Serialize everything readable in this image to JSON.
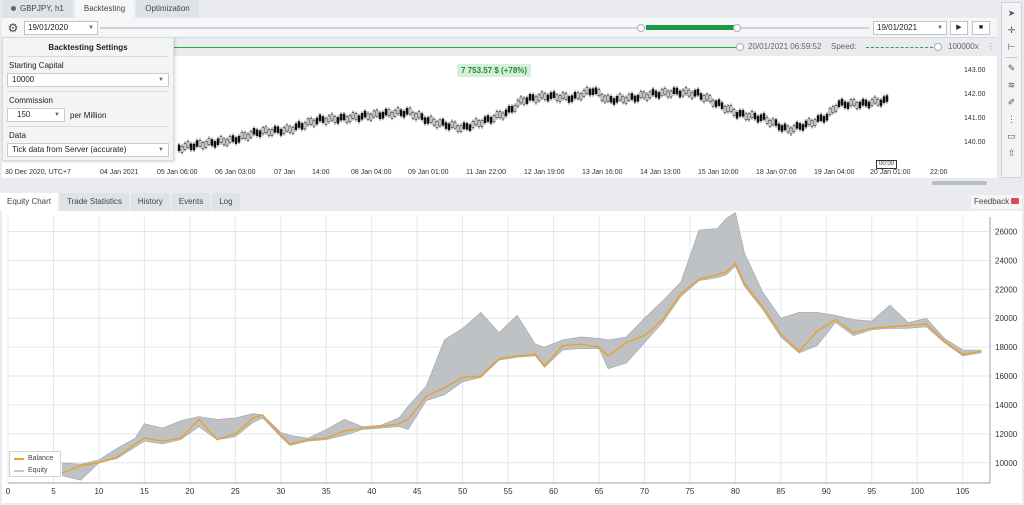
{
  "top_tabs": [
    {
      "label": "GBPJPY, h1"
    },
    {
      "label": "Backtesting"
    },
    {
      "label": "Optimization"
    }
  ],
  "control_bar": {
    "start_date": "19/01/2020",
    "end_date": "19/01/2021",
    "play_symbol": "▶",
    "stop_symbol": "■"
  },
  "speed_bar": {
    "timestamp": "20/01/2021 06:59:52",
    "speed_label": "Speed:",
    "speed_value": "100000x"
  },
  "candle_chart": {
    "profit_badge": "7 753.57 $ (+78%)",
    "price_labels": [
      "143.00",
      "142.00",
      "141.00",
      "140.00"
    ],
    "time_labels": [
      "30 Dec 2020, UTC+7",
      "04 Jan 2021",
      "05 Jan 06:00",
      "06 Jan 03:00",
      "07 Jan",
      "14:00",
      "08 Jan 04:00",
      "09 Jan 01:00",
      "11 Jan 22:00",
      "12 Jan 19:00",
      "13 Jan 16:00",
      "14 Jan 13:00",
      "15 Jan 10:00",
      "18 Jan 07:00",
      "19 Jan 04:00",
      "20 Jan 01:00",
      "22:00"
    ],
    "cursor_label": "00:00"
  },
  "settings": {
    "title": "Backtesting Settings",
    "starting_capital_label": "Starting Capital",
    "starting_capital_value": "10000",
    "commission_label": "Commission",
    "commission_value": "150",
    "commission_unit": "per Million",
    "data_label": "Data",
    "data_value": "Tick data from Server (accurate)"
  },
  "bottom_tabs": [
    {
      "label": "Equity Chart"
    },
    {
      "label": "Trade Statistics"
    },
    {
      "label": "History"
    },
    {
      "label": "Events"
    },
    {
      "label": "Log"
    }
  ],
  "feedback_label": "Feedback",
  "colors": {
    "balance": "#e8a02e",
    "equity_band": "#b8bbbf",
    "accent_green": "#1c9b45"
  },
  "chart_data": {
    "type": "line",
    "title": "",
    "xlabel": "",
    "ylabel": "",
    "xlim": [
      0,
      108
    ],
    "ylim": [
      8600,
      27000
    ],
    "x_ticks": [
      0,
      5,
      10,
      15,
      20,
      25,
      30,
      35,
      40,
      45,
      50,
      55,
      60,
      65,
      70,
      75,
      80,
      85,
      90,
      95,
      100,
      105
    ],
    "y_ticks": [
      10000,
      12000,
      14000,
      16000,
      18000,
      20000,
      22000,
      24000,
      26000
    ],
    "grid": true,
    "legend_position": "bottom-left",
    "series": [
      {
        "name": "Balance",
        "x": [
          6,
          8,
          10,
          12,
          14,
          15,
          17,
          19,
          21,
          23,
          25,
          27,
          28,
          30,
          31,
          33,
          35,
          37,
          39,
          41,
          43,
          44,
          46,
          48,
          50,
          52,
          54,
          56,
          58,
          59,
          61,
          63,
          65,
          66,
          68,
          70,
          72,
          74,
          76,
          78,
          79,
          80,
          81,
          83,
          85,
          87,
          89,
          91,
          93,
          95,
          97,
          99,
          101,
          103,
          105,
          107
        ],
        "y": [
          9300,
          9800,
          10000,
          10400,
          11300,
          11700,
          11500,
          11700,
          13000,
          11600,
          12000,
          13100,
          13300,
          11900,
          11300,
          11600,
          11700,
          12200,
          12400,
          12500,
          12700,
          13000,
          14600,
          15200,
          15900,
          16000,
          17200,
          17400,
          17500,
          16700,
          18100,
          18200,
          18000,
          17400,
          18300,
          18800,
          19900,
          21700,
          22700,
          23000,
          23200,
          23800,
          22400,
          20800,
          18900,
          17700,
          19100,
          19900,
          19000,
          19300,
          19400,
          19500,
          19600,
          18400,
          17500,
          17700
        ]
      },
      {
        "name": "Equity",
        "x": [
          6,
          8,
          10,
          12,
          14,
          15,
          17,
          19,
          21,
          23,
          25,
          27,
          28,
          30,
          31,
          33,
          35,
          37,
          39,
          41,
          43,
          44,
          46,
          48,
          50,
          52,
          54,
          56,
          58,
          59,
          61,
          63,
          65,
          66,
          68,
          70,
          72,
          74,
          76,
          78,
          79,
          80,
          81,
          83,
          85,
          87,
          89,
          91,
          93,
          95,
          97,
          99,
          101,
          103,
          105,
          107
        ],
        "upper": [
          10000,
          9900,
          10200,
          11000,
          11700,
          12700,
          12400,
          12900,
          13200,
          13000,
          13100,
          13400,
          13300,
          12100,
          11900,
          11700,
          12300,
          13000,
          12500,
          12600,
          13100,
          13900,
          15300,
          18500,
          19300,
          20400,
          19000,
          20200,
          18200,
          18000,
          18500,
          18700,
          18600,
          18500,
          18700,
          20000,
          21200,
          22500,
          26100,
          26200,
          26900,
          27300,
          24500,
          21800,
          20000,
          20400,
          20400,
          20200,
          19900,
          19800,
          20900,
          19700,
          20000,
          18600,
          17800,
          17800
        ],
        "lower": [
          9100,
          8800,
          10000,
          10300,
          11100,
          11500,
          11300,
          11600,
          12500,
          11600,
          11800,
          12800,
          13100,
          11800,
          11200,
          11500,
          11600,
          11900,
          12300,
          12400,
          12500,
          12300,
          14300,
          14700,
          15600,
          15900,
          17100,
          17300,
          17400,
          16600,
          17800,
          17900,
          17900,
          16500,
          16900,
          18300,
          19700,
          21500,
          22600,
          22800,
          23000,
          23600,
          22200,
          20600,
          18700,
          17600,
          18100,
          19700,
          18800,
          19200,
          19300,
          19300,
          19400,
          18300,
          17400,
          17600
        ]
      }
    ]
  }
}
